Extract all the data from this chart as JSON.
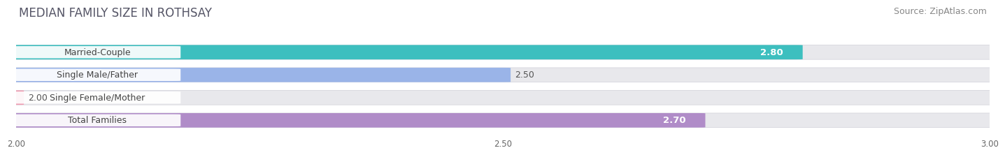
{
  "title": "MEDIAN FAMILY SIZE IN ROTHSAY",
  "source": "Source: ZipAtlas.com",
  "categories": [
    "Married-Couple",
    "Single Male/Father",
    "Single Female/Mother",
    "Total Families"
  ],
  "values": [
    2.8,
    2.5,
    2.0,
    2.7
  ],
  "bar_colors": [
    "#3dbfbf",
    "#9ab4e8",
    "#f09ab0",
    "#b08cc8"
  ],
  "xlim": [
    2.0,
    3.0
  ],
  "xticks": [
    2.0,
    2.5,
    3.0
  ],
  "xtick_labels": [
    "2.00",
    "2.50",
    "3.00"
  ],
  "bar_height": 0.62,
  "background_color": "#ffffff",
  "bar_bg_color": "#e8e8ec",
  "value_label_inside": [
    true,
    false,
    false,
    true
  ],
  "title_fontsize": 12,
  "source_fontsize": 9,
  "label_fontsize": 9,
  "value_fontsize": 9
}
